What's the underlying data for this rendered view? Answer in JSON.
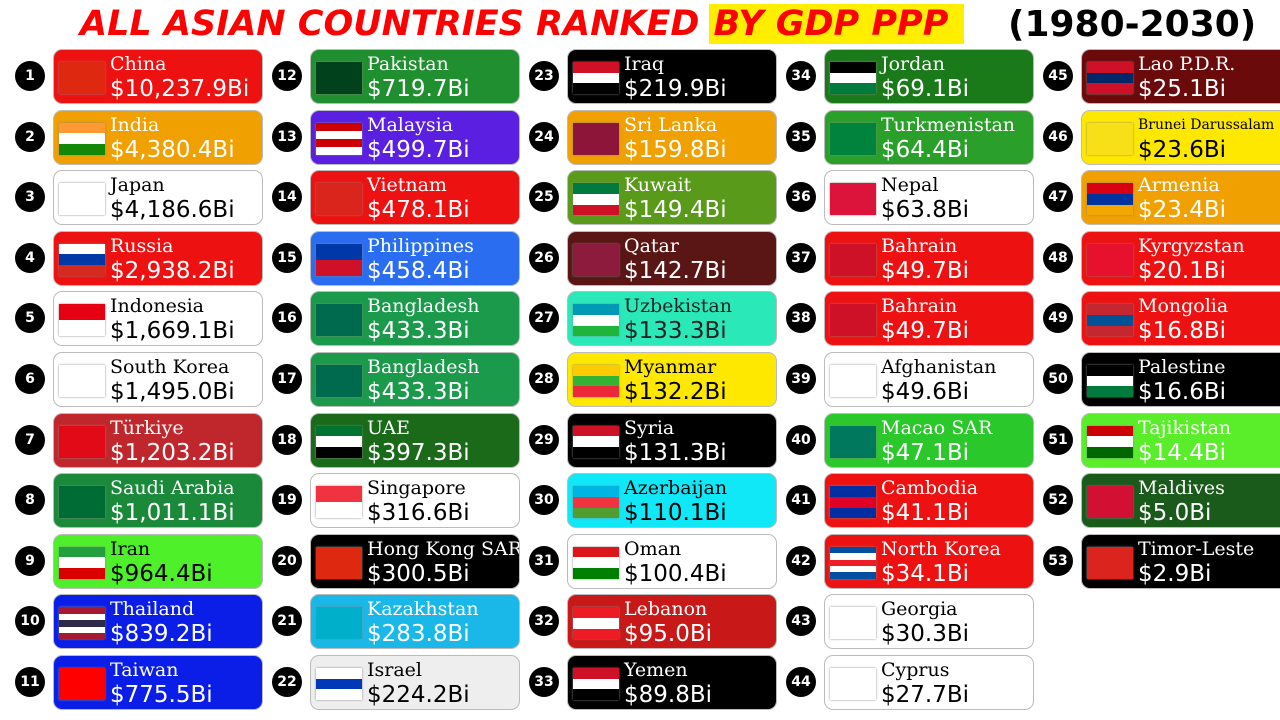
{
  "title": {
    "part1": "ALL ASIAN COUNTRIES RANKED",
    "part2": "BY GDP PPP",
    "years": "(1980-2030)"
  },
  "entries": [
    {
      "rank": 1,
      "name": "China",
      "value": "$10,237.9Bi",
      "bg": "#ee1111",
      "fg": "#ffffff",
      "flag": [
        "#de2910"
      ]
    },
    {
      "rank": 2,
      "name": "India",
      "value": "$4,380.4Bi",
      "bg": "#f0a000",
      "fg": "#ffffff",
      "flag": [
        "#ff9933",
        "#ffffff",
        "#138808"
      ]
    },
    {
      "rank": 3,
      "name": "Japan",
      "value": "$4,186.6Bi",
      "bg": "#ffffff",
      "fg": "#000000",
      "flag": [
        "#ffffff"
      ]
    },
    {
      "rank": 4,
      "name": "Russia",
      "value": "$2,938.2Bi",
      "bg": "#ee1111",
      "fg": "#ffffff",
      "flag": [
        "#ffffff",
        "#0039a6",
        "#d52b1e"
      ]
    },
    {
      "rank": 5,
      "name": "Indonesia",
      "value": "$1,669.1Bi",
      "bg": "#ffffff",
      "fg": "#000000",
      "flag": [
        "#e70011",
        "#ffffff"
      ]
    },
    {
      "rank": 6,
      "name": "South Korea",
      "value": "$1,495.0Bi",
      "bg": "#ffffff",
      "fg": "#000000",
      "flag": [
        "#ffffff"
      ]
    },
    {
      "rank": 7,
      "name": "Türkiye",
      "value": "$1,203.2Bi",
      "bg": "#c0272d",
      "fg": "#ffffff",
      "flag": [
        "#e30a17"
      ]
    },
    {
      "rank": 8,
      "name": "Saudi Arabia",
      "value": "$1,011.1Bi",
      "bg": "#1a8a3a",
      "fg": "#ffffff",
      "flag": [
        "#006c35"
      ]
    },
    {
      "rank": 9,
      "name": "Iran",
      "value": "$964.4Bi",
      "bg": "#4ef02a",
      "fg": "#000000",
      "flag": [
        "#239f40",
        "#ffffff",
        "#da0000"
      ]
    },
    {
      "rank": 10,
      "name": "Thailand",
      "value": "$839.2Bi",
      "bg": "#0a1ee8",
      "fg": "#ffffff",
      "flag": [
        "#a51931",
        "#ffffff",
        "#2d2a4a",
        "#ffffff",
        "#a51931"
      ]
    },
    {
      "rank": 11,
      "name": "Taiwan",
      "value": "$775.5Bi",
      "bg": "#0a1ee8",
      "fg": "#ffffff",
      "flag": [
        "#fe0000"
      ]
    },
    {
      "rank": 12,
      "name": "Pakistan",
      "value": "$719.7Bi",
      "bg": "#1f8f2f",
      "fg": "#ffffff",
      "flag": [
        "#01411c"
      ]
    },
    {
      "rank": 13,
      "name": "Malaysia",
      "value": "$499.7Bi",
      "bg": "#5a1fe0",
      "fg": "#ffffff",
      "flag": [
        "#cc0001",
        "#ffffff",
        "#cc0001",
        "#ffffff"
      ]
    },
    {
      "rank": 14,
      "name": "Vietnam",
      "value": "$478.1Bi",
      "bg": "#ee1111",
      "fg": "#ffffff",
      "flag": [
        "#da251d"
      ]
    },
    {
      "rank": 15,
      "name": "Philippines",
      "value": "$458.4Bi",
      "bg": "#2a6df0",
      "fg": "#ffffff",
      "flag": [
        "#0038a8",
        "#ce1126"
      ]
    },
    {
      "rank": 16,
      "name": "Bangladesh",
      "value": "$433.3Bi",
      "bg": "#1a9a4a",
      "fg": "#ffffff",
      "flag": [
        "#006a4e"
      ]
    },
    {
      "rank": 17,
      "name": "Bangladesh",
      "value": "$433.3Bi",
      "bg": "#1a9a4a",
      "fg": "#ffffff",
      "flag": [
        "#006a4e"
      ]
    },
    {
      "rank": 18,
      "name": "UAE",
      "value": "$397.3Bi",
      "bg": "#1a6a1a",
      "fg": "#ffffff",
      "flag": [
        "#00732f",
        "#ffffff",
        "#000000"
      ]
    },
    {
      "rank": 19,
      "name": "Singapore",
      "value": "$316.6Bi",
      "bg": "#ffffff",
      "fg": "#000000",
      "flag": [
        "#ef3340",
        "#ffffff"
      ]
    },
    {
      "rank": 20,
      "name": "Hong Kong SAR",
      "value": "$300.5Bi",
      "bg": "#000000",
      "fg": "#ffffff",
      "flag": [
        "#de2910"
      ]
    },
    {
      "rank": 21,
      "name": "Kazakhstan",
      "value": "$283.8Bi",
      "bg": "#1ab8e8",
      "fg": "#ffffff",
      "flag": [
        "#00afca"
      ]
    },
    {
      "rank": 22,
      "name": "Israel",
      "value": "$224.2Bi",
      "bg": "#eeeeee",
      "fg": "#000000",
      "flag": [
        "#ffffff",
        "#0038b8",
        "#ffffff"
      ]
    },
    {
      "rank": 23,
      "name": "Iraq",
      "value": "$219.9Bi",
      "bg": "#000000",
      "fg": "#ffffff",
      "flag": [
        "#ce1126",
        "#ffffff",
        "#000000"
      ]
    },
    {
      "rank": 24,
      "name": "Sri Lanka",
      "value": "$159.8Bi",
      "bg": "#f0a000",
      "fg": "#ffffff",
      "flag": [
        "#8d153a"
      ]
    },
    {
      "rank": 25,
      "name": "Kuwait",
      "value": "$149.4Bi",
      "bg": "#5a9a1a",
      "fg": "#ffffff",
      "flag": [
        "#007a3d",
        "#ffffff",
        "#ce1126"
      ]
    },
    {
      "rank": 26,
      "name": "Qatar",
      "value": "$142.7Bi",
      "bg": "#5a1515",
      "fg": "#ffffff",
      "flag": [
        "#8d1b3d"
      ]
    },
    {
      "rank": 27,
      "name": "Uzbekistan",
      "value": "$133.3Bi",
      "bg": "#2ae8b8",
      "fg": "#222222",
      "flag": [
        "#0099b5",
        "#ffffff",
        "#1eb53a"
      ]
    },
    {
      "rank": 28,
      "name": "Myanmar",
      "value": "$132.2Bi",
      "bg": "#ffe800",
      "fg": "#000000",
      "flag": [
        "#fecb00",
        "#34b233",
        "#ea2839"
      ]
    },
    {
      "rank": 29,
      "name": "Syria",
      "value": "$131.3Bi",
      "bg": "#000000",
      "fg": "#ffffff",
      "flag": [
        "#ce1126",
        "#ffffff",
        "#000000"
      ]
    },
    {
      "rank": 30,
      "name": "Azerbaijan",
      "value": "$110.1Bi",
      "bg": "#10e8f8",
      "fg": "#000000",
      "flag": [
        "#00b5e2",
        "#ef3340",
        "#509e2f"
      ]
    },
    {
      "rank": 31,
      "name": "Oman",
      "value": "$100.4Bi",
      "bg": "#ffffff",
      "fg": "#000000",
      "flag": [
        "#db161b",
        "#ffffff",
        "#008000"
      ]
    },
    {
      "rank": 32,
      "name": "Lebanon",
      "value": "$95.0Bi",
      "bg": "#c81818",
      "fg": "#ffffff",
      "flag": [
        "#ed1c24",
        "#ffffff",
        "#ed1c24"
      ]
    },
    {
      "rank": 33,
      "name": "Yemen",
      "value": "$89.8Bi",
      "bg": "#000000",
      "fg": "#ffffff",
      "flag": [
        "#ce1126",
        "#ffffff",
        "#000000"
      ]
    },
    {
      "rank": 34,
      "name": "Jordan",
      "value": "$69.1Bi",
      "bg": "#1a7a1a",
      "fg": "#ffffff",
      "flag": [
        "#000000",
        "#ffffff",
        "#007a3d"
      ]
    },
    {
      "rank": 35,
      "name": "Turkmenistan",
      "value": "$64.4Bi",
      "bg": "#2aa02a",
      "fg": "#ffffff",
      "flag": [
        "#00843d"
      ]
    },
    {
      "rank": 36,
      "name": "Nepal",
      "value": "$63.8Bi",
      "bg": "#ffffff",
      "fg": "#000000",
      "flag": [
        "#dc143c"
      ]
    },
    {
      "rank": 37,
      "name": "Bahrain",
      "value": "$49.7Bi",
      "bg": "#ee1111",
      "fg": "#ffffff",
      "flag": [
        "#ce1126"
      ]
    },
    {
      "rank": 38,
      "name": "Bahrain",
      "value": "$49.7Bi",
      "bg": "#ee1111",
      "fg": "#ffffff",
      "flag": [
        "#ce1126"
      ]
    },
    {
      "rank": 39,
      "name": "Afghanistan",
      "value": "$49.6Bi",
      "bg": "#ffffff",
      "fg": "#000000",
      "flag": [
        "#ffffff"
      ]
    },
    {
      "rank": 40,
      "name": "Macao SAR",
      "value": "$47.1Bi",
      "bg": "#2ac82a",
      "fg": "#ffffff",
      "flag": [
        "#00785e"
      ]
    },
    {
      "rank": 41,
      "name": "Cambodia",
      "value": "$41.1Bi",
      "bg": "#ee1111",
      "fg": "#ffffff",
      "flag": [
        "#032ea1",
        "#e00025",
        "#032ea1"
      ]
    },
    {
      "rank": 42,
      "name": "North Korea",
      "value": "$34.1Bi",
      "bg": "#ee1111",
      "fg": "#ffffff",
      "flag": [
        "#024fa2",
        "#ffffff",
        "#ed1c27",
        "#ffffff",
        "#024fa2"
      ]
    },
    {
      "rank": 43,
      "name": "Georgia",
      "value": "$30.3Bi",
      "bg": "#ffffff",
      "fg": "#000000",
      "flag": [
        "#ffffff"
      ]
    },
    {
      "rank": 44,
      "name": "Cyprus",
      "value": "$27.7Bi",
      "bg": "#ffffff",
      "fg": "#000000",
      "flag": [
        "#ffffff"
      ]
    },
    {
      "rank": 45,
      "name": "Lao P.D.R.",
      "value": "$25.1Bi",
      "bg": "#6a0a0a",
      "fg": "#ffffff",
      "flag": [
        "#ce1126",
        "#002868",
        "#ce1126"
      ]
    },
    {
      "rank": 46,
      "name": "Brunei Darussalam",
      "value": "$23.6Bi",
      "bg": "#ffe800",
      "fg": "#000000",
      "flag": [
        "#f7e017"
      ]
    },
    {
      "rank": 47,
      "name": "Armenia",
      "value": "$23.4Bi",
      "bg": "#f0a000",
      "fg": "#ffffff",
      "flag": [
        "#d90012",
        "#0033a0",
        "#f2a800"
      ]
    },
    {
      "rank": 48,
      "name": "Kyrgyzstan",
      "value": "$20.1Bi",
      "bg": "#ee1111",
      "fg": "#ffffff",
      "flag": [
        "#e8112d"
      ]
    },
    {
      "rank": 49,
      "name": "Mongolia",
      "value": "$16.8Bi",
      "bg": "#ee1111",
      "fg": "#ffffff",
      "flag": [
        "#c4272f",
        "#015197",
        "#c4272f"
      ]
    },
    {
      "rank": 50,
      "name": "Palestine",
      "value": "$16.6Bi",
      "bg": "#000000",
      "fg": "#ffffff",
      "flag": [
        "#000000",
        "#ffffff",
        "#007a3d"
      ]
    },
    {
      "rank": 51,
      "name": "Tajikistan",
      "value": "$14.4Bi",
      "bg": "#5aee2a",
      "fg": "#ffffff",
      "flag": [
        "#cc0000",
        "#ffffff",
        "#006600"
      ]
    },
    {
      "rank": 52,
      "name": "Maldives",
      "value": "$5.0Bi",
      "bg": "#1a5a1a",
      "fg": "#ffffff",
      "flag": [
        "#d21034"
      ]
    },
    {
      "rank": 53,
      "name": "Timor-Leste",
      "value": "$2.9Bi",
      "bg": "#000000",
      "fg": "#ffffff",
      "flag": [
        "#dc241f"
      ]
    }
  ]
}
